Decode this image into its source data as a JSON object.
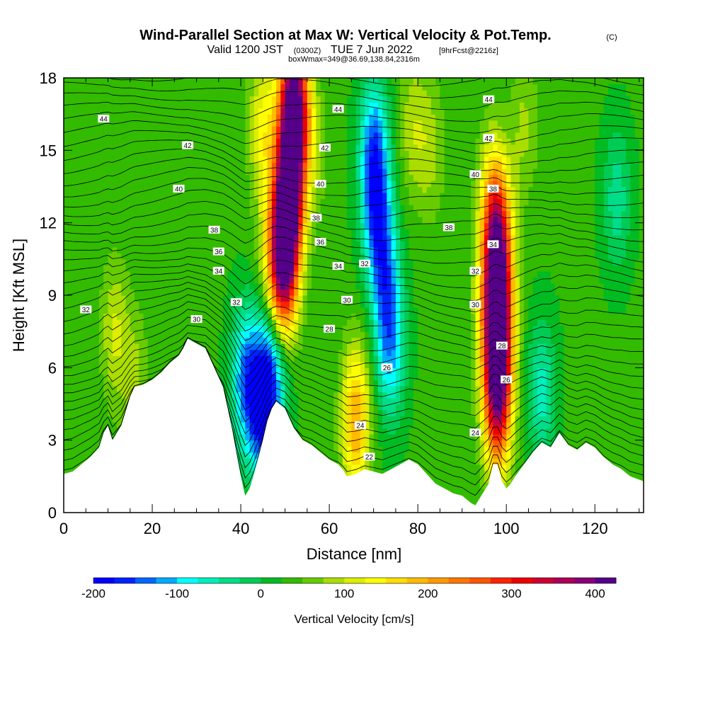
{
  "header": {
    "title": "Wind-Parallel Section at Max W: Vertical Velocity & Pot.Temp.",
    "title_mark": "(C)",
    "valid_prefix": "Valid 1200 JST",
    "valid_utc": "(0300Z)",
    "valid_date": "TUE 7 Jun 2022",
    "forecast_info": "[9hrFcst@2216z]",
    "box_info": "boxWmax=349@36.69,138.84,2316m"
  },
  "chart_data": {
    "type": "heatmap",
    "xlabel": "Distance [nm]",
    "ylabel": "Height [Kft MSL]",
    "xlim": [
      0,
      131
    ],
    "ylim": [
      0,
      18
    ],
    "x_ticks": [
      0,
      20,
      40,
      60,
      80,
      100,
      120
    ],
    "y_ticks": [
      0,
      3,
      6,
      9,
      12,
      15,
      18
    ],
    "x_tick_labels": [
      "0",
      "20",
      "40",
      "60",
      "80",
      "100",
      "120"
    ],
    "y_tick_labels": [
      "0",
      "3",
      "6",
      "9",
      "12",
      "15",
      "18"
    ],
    "colorbar": {
      "title": "Vertical Velocity [cm/s]",
      "min": -200,
      "max": 425,
      "tick_values": [
        -200,
        -100,
        0,
        100,
        200,
        300,
        400
      ],
      "tick_labels": [
        "-200",
        "-100",
        "0",
        "100",
        "200",
        "300",
        "400"
      ],
      "colors": [
        "#0000ff",
        "#0022ff",
        "#0066ff",
        "#00aaff",
        "#00ffff",
        "#00eebb",
        "#00dd88",
        "#00cc55",
        "#00bb22",
        "#33bb00",
        "#66cc00",
        "#aadd00",
        "#ddee00",
        "#ffff00",
        "#ffdd00",
        "#ffbb00",
        "#ff9900",
        "#ff7700",
        "#ff5500",
        "#ff2200",
        "#ee0000",
        "#cc0033",
        "#aa0055",
        "#880077",
        "#550088"
      ]
    },
    "terrain": [
      [
        0,
        1.6
      ],
      [
        2,
        1.7
      ],
      [
        4,
        2.0
      ],
      [
        6,
        2.3
      ],
      [
        8,
        2.7
      ],
      [
        9,
        3.3
      ],
      [
        10,
        3.6
      ],
      [
        11,
        3.0
      ],
      [
        12,
        3.3
      ],
      [
        13,
        3.6
      ],
      [
        14,
        4.2
      ],
      [
        15,
        4.8
      ],
      [
        16,
        5.2
      ],
      [
        18,
        5.3
      ],
      [
        20,
        5.5
      ],
      [
        22,
        5.8
      ],
      [
        24,
        6.2
      ],
      [
        26,
        6.5
      ],
      [
        27,
        6.8
      ],
      [
        28,
        7.2
      ],
      [
        30,
        7.0
      ],
      [
        32,
        6.8
      ],
      [
        34,
        6.0
      ],
      [
        36,
        5.2
      ],
      [
        38,
        3.5
      ],
      [
        39,
        2.5
      ],
      [
        40,
        1.5
      ],
      [
        41,
        0.7
      ],
      [
        42,
        1.0
      ],
      [
        43,
        1.6
      ],
      [
        44,
        2.3
      ],
      [
        45,
        3.0
      ],
      [
        46,
        3.8
      ],
      [
        47,
        4.3
      ],
      [
        48,
        4.6
      ],
      [
        50,
        4.3
      ],
      [
        52,
        3.5
      ],
      [
        54,
        3.0
      ],
      [
        56,
        2.8
      ],
      [
        58,
        2.5
      ],
      [
        60,
        2.2
      ],
      [
        62,
        2.0
      ],
      [
        63,
        1.8
      ],
      [
        64,
        1.5
      ],
      [
        66,
        1.6
      ],
      [
        68,
        1.8
      ],
      [
        70,
        1.7
      ],
      [
        72,
        1.6
      ],
      [
        74,
        1.8
      ],
      [
        76,
        2.0
      ],
      [
        78,
        2.2
      ],
      [
        80,
        2.0
      ],
      [
        82,
        1.6
      ],
      [
        84,
        1.2
      ],
      [
        86,
        1.0
      ],
      [
        88,
        0.8
      ],
      [
        90,
        0.7
      ],
      [
        92,
        0.4
      ],
      [
        93,
        0.3
      ],
      [
        94,
        0.6
      ],
      [
        96,
        1.2
      ],
      [
        97,
        2.0
      ],
      [
        98,
        2.0
      ],
      [
        99,
        1.3
      ],
      [
        100,
        1.0
      ],
      [
        101,
        1.2
      ],
      [
        102,
        1.5
      ],
      [
        104,
        2.0
      ],
      [
        106,
        2.5
      ],
      [
        108,
        2.9
      ],
      [
        110,
        2.7
      ],
      [
        112,
        3.3
      ],
      [
        114,
        2.8
      ],
      [
        116,
        2.6
      ],
      [
        118,
        2.9
      ],
      [
        120,
        2.7
      ],
      [
        122,
        2.3
      ],
      [
        124,
        2.0
      ],
      [
        126,
        1.8
      ],
      [
        128,
        1.5
      ],
      [
        131,
        1.3
      ]
    ],
    "vv_samples": [
      {
        "x": 11.5,
        "y": 7.5,
        "v": 100
      },
      {
        "x": 16,
        "y": 5.5,
        "v": 80
      },
      {
        "x": 41,
        "y": 5.5,
        "v": -120
      },
      {
        "x": 45,
        "y": 4.5,
        "v": -200
      },
      {
        "x": 48,
        "y": 6.5,
        "v": -110
      },
      {
        "x": 47,
        "y": 11,
        "v": 90
      },
      {
        "x": 49,
        "y": 9,
        "v": 200
      },
      {
        "x": 50,
        "y": 11,
        "v": 300
      },
      {
        "x": 51,
        "y": 13.5,
        "v": 370
      },
      {
        "x": 52,
        "y": 17,
        "v": 425
      },
      {
        "x": 45,
        "y": 16,
        "v": 130
      },
      {
        "x": 56,
        "y": 15,
        "v": 80
      },
      {
        "x": 66,
        "y": 4.3,
        "v": 140
      },
      {
        "x": 66,
        "y": 3,
        "v": 100
      },
      {
        "x": 70,
        "y": 15,
        "v": -130
      },
      {
        "x": 71,
        "y": 12,
        "v": -120
      },
      {
        "x": 73,
        "y": 9,
        "v": -90
      },
      {
        "x": 74,
        "y": 6.5,
        "v": -70
      },
      {
        "x": 79,
        "y": 16,
        "v": 90
      },
      {
        "x": 83,
        "y": 15,
        "v": 80
      },
      {
        "x": 95,
        "y": 9,
        "v": 60
      },
      {
        "x": 97,
        "y": 13,
        "v": 130
      },
      {
        "x": 98,
        "y": 11,
        "v": 300
      },
      {
        "x": 98,
        "y": 8,
        "v": 360
      },
      {
        "x": 98,
        "y": 5.5,
        "v": 240
      },
      {
        "x": 98,
        "y": 4,
        "v": 160
      },
      {
        "x": 104,
        "y": 16,
        "v": 80
      },
      {
        "x": 108,
        "y": 5,
        "v": -60
      },
      {
        "x": 125,
        "y": 13,
        "v": -40
      }
    ],
    "theta_labels": [
      {
        "x": 9,
        "y": 16.3,
        "text": "44"
      },
      {
        "x": 62,
        "y": 16.7,
        "text": "44"
      },
      {
        "x": 96,
        "y": 17.1,
        "text": "44"
      },
      {
        "x": 28,
        "y": 15.2,
        "text": "42"
      },
      {
        "x": 59,
        "y": 15.1,
        "text": "42"
      },
      {
        "x": 96,
        "y": 15.5,
        "text": "42"
      },
      {
        "x": 26,
        "y": 13.4,
        "text": "40"
      },
      {
        "x": 58,
        "y": 13.6,
        "text": "40"
      },
      {
        "x": 93,
        "y": 14.0,
        "text": "40"
      },
      {
        "x": 34,
        "y": 11.7,
        "text": "38"
      },
      {
        "x": 57,
        "y": 12.2,
        "text": "38"
      },
      {
        "x": 87,
        "y": 11.8,
        "text": "38"
      },
      {
        "x": 97,
        "y": 13.4,
        "text": "38"
      },
      {
        "x": 35,
        "y": 10.8,
        "text": "36"
      },
      {
        "x": 58,
        "y": 11.2,
        "text": "36"
      },
      {
        "x": 35,
        "y": 10.0,
        "text": "34"
      },
      {
        "x": 62,
        "y": 10.2,
        "text": "34"
      },
      {
        "x": 97,
        "y": 11.1,
        "text": "34"
      },
      {
        "x": 39,
        "y": 8.7,
        "text": "32"
      },
      {
        "x": 5,
        "y": 8.4,
        "text": "32"
      },
      {
        "x": 68,
        "y": 10.3,
        "text": "32"
      },
      {
        "x": 93,
        "y": 10.0,
        "text": "32"
      },
      {
        "x": 30,
        "y": 8.0,
        "text": "30"
      },
      {
        "x": 64,
        "y": 8.8,
        "text": "30"
      },
      {
        "x": 93,
        "y": 8.6,
        "text": "30"
      },
      {
        "x": 60,
        "y": 7.6,
        "text": "28"
      },
      {
        "x": 99,
        "y": 6.9,
        "text": "28"
      },
      {
        "x": 73,
        "y": 6.0,
        "text": "26"
      },
      {
        "x": 100,
        "y": 5.5,
        "text": "26"
      },
      {
        "x": 67,
        "y": 3.6,
        "text": "24"
      },
      {
        "x": 93,
        "y": 3.3,
        "text": "24"
      },
      {
        "x": 69,
        "y": 2.3,
        "text": "22"
      }
    ]
  }
}
